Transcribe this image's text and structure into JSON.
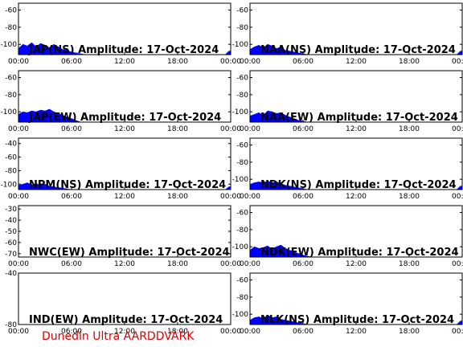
{
  "chart_data": [
    {
      "type": "area",
      "title": "JAP(NS) Amplitude: 17-Oct-2024",
      "yticks": [
        "-60",
        "-80",
        "-100"
      ],
      "ylim": [
        -112,
        -52
      ],
      "xticks": [
        "00:00",
        "06:00",
        "12:00",
        "18:00",
        "00:00"
      ],
      "xlim": [
        0,
        24
      ],
      "color": "#0000ff",
      "series": [
        {
          "x": [
            0,
            0.5,
            1,
            1.5,
            2,
            2.5,
            3,
            3.5,
            4,
            4.5,
            5,
            5.5,
            6,
            6.5,
            7,
            7.5,
            23.4,
            23.8,
            24
          ],
          "y": [
            -105,
            -100,
            -102,
            -98,
            -103,
            -99,
            -101,
            -104,
            -100,
            -103,
            -106,
            -107,
            -109,
            -110,
            -111,
            -112,
            -112,
            -108,
            -108
          ]
        }
      ]
    },
    {
      "type": "area",
      "title": "NAA(NS) Amplitude: 17-Oct-2024",
      "yticks": [
        "-60",
        "-80",
        "-100"
      ],
      "ylim": [
        -112,
        -52
      ],
      "xticks": [
        "00:00",
        "06:00",
        "12:00",
        "18:00",
        "00:00"
      ],
      "xlim": [
        0,
        24
      ],
      "color": "#0000ff",
      "series": [
        {
          "x": [
            0,
            0.5,
            1,
            1.5,
            2,
            2.5,
            3,
            3.5,
            4,
            4.5,
            5,
            5.5,
            6,
            6.5,
            7,
            23.4,
            23.8,
            24
          ],
          "y": [
            -106,
            -103,
            -101,
            -104,
            -100,
            -102,
            -105,
            -103,
            -107,
            -108,
            -109,
            -110,
            -111,
            -112,
            -112,
            -112,
            -108,
            -108
          ]
        }
      ]
    },
    {
      "type": "area",
      "title": "JAP(EW) Amplitude: 17-Oct-2024",
      "yticks": [
        "-60",
        "-80",
        "-100"
      ],
      "ylim": [
        -112,
        -52
      ],
      "xticks": [
        "00:00",
        "06:00",
        "12:00",
        "18:00",
        "00:00"
      ],
      "xlim": [
        0,
        24
      ],
      "color": "#0000ff",
      "series": [
        {
          "x": [
            0,
            0.5,
            1,
            1.5,
            2,
            2.5,
            3,
            3.5,
            4,
            4.5,
            5,
            5.5,
            6,
            6.5,
            7,
            24
          ],
          "y": [
            -103,
            -100,
            -101,
            -99,
            -100,
            -98,
            -99,
            -97,
            -100,
            -102,
            -104,
            -106,
            -108,
            -110,
            -112,
            -112
          ]
        }
      ]
    },
    {
      "type": "area",
      "title": "NAA(EW) Amplitude: 17-Oct-2024",
      "yticks": [
        "-60",
        "-80",
        "-100"
      ],
      "ylim": [
        -112,
        -52
      ],
      "xticks": [
        "00:00",
        "06:00",
        "12:00",
        "18:00",
        "00:00"
      ],
      "xlim": [
        0,
        24
      ],
      "color": "#0000ff",
      "series": [
        {
          "x": [
            0,
            0.5,
            1,
            1.5,
            2,
            2.5,
            3,
            3.5,
            4,
            4.5,
            5,
            5.5,
            6,
            6.5,
            7,
            24
          ],
          "y": [
            -105,
            -103,
            -101,
            -104,
            -99,
            -100,
            -102,
            -101,
            -104,
            -106,
            -108,
            -110,
            -111,
            -112,
            -112,
            -112
          ]
        }
      ]
    },
    {
      "type": "area",
      "title": "NPM(NS) Amplitude: 17-Oct-2024",
      "yticks": [
        "-40",
        "-60",
        "-80",
        "-100"
      ],
      "ylim": [
        -108,
        -32
      ],
      "xticks": [
        "00:00",
        "06:00",
        "12:00",
        "18:00",
        "00:00"
      ],
      "xlim": [
        0,
        24
      ],
      "color": "#0000ff",
      "series": [
        {
          "x": [
            0,
            0.5,
            1,
            1.5,
            2,
            2.5,
            3,
            3.5,
            4,
            4.5,
            5,
            5.5,
            6,
            23.4,
            23.8,
            24
          ],
          "y": [
            -102,
            -100,
            -98,
            -101,
            -99,
            -102,
            -100,
            -103,
            -104,
            -105,
            -106,
            -107,
            -108,
            -108,
            -104,
            -104
          ]
        }
      ]
    },
    {
      "type": "area",
      "title": "NDK(NS) Amplitude: 17-Oct-2024",
      "yticks": [
        "-60",
        "-80",
        "-100"
      ],
      "ylim": [
        -112,
        -52
      ],
      "xticks": [
        "00:00",
        "06:00",
        "12:00",
        "18:00",
        "00:00"
      ],
      "xlim": [
        0,
        24
      ],
      "color": "#0000ff",
      "series": [
        {
          "x": [
            0,
            0.5,
            1,
            1.5,
            2,
            2.5,
            3,
            3.5,
            4,
            4.5,
            5,
            5.5,
            6,
            6.5,
            7,
            23.4,
            23.8,
            24
          ],
          "y": [
            -106,
            -104,
            -103,
            -104,
            -102,
            -104,
            -103,
            -105,
            -107,
            -108,
            -109,
            -110,
            -111,
            -112,
            -112,
            -112,
            -108,
            -108
          ]
        }
      ]
    },
    {
      "type": "area",
      "title": "NWC(EW) Amplitude: 17-Oct-2024",
      "yticks": [
        "-30",
        "-40",
        "-50",
        "-60",
        "-70"
      ],
      "ylim": [
        -73,
        -27
      ],
      "xticks": [
        "00:00",
        "06:00",
        "12:00",
        "18:00",
        "00:00"
      ],
      "xlim": [
        0,
        24
      ],
      "color": "#0000ff",
      "series": [
        {
          "x": [
            0,
            24
          ],
          "y": [
            -73,
            -73
          ]
        }
      ]
    },
    {
      "type": "area",
      "title": "NDK(EW) Amplitude: 17-Oct-2024",
      "yticks": [
        "-60",
        "-80",
        "-100"
      ],
      "ylim": [
        -112,
        -52
      ],
      "xticks": [
        "00:00",
        "06:00",
        "12:00",
        "18:00",
        "00:00"
      ],
      "xlim": [
        0,
        24
      ],
      "color": "#0000ff",
      "series": [
        {
          "x": [
            0,
            0.5,
            1,
            1.5,
            2,
            2.5,
            3,
            3.5,
            4,
            4.5,
            5,
            5.5,
            6,
            6.5,
            7,
            24
          ],
          "y": [
            -104,
            -100,
            -102,
            -101,
            -99,
            -103,
            -100,
            -98,
            -102,
            -104,
            -106,
            -108,
            -110,
            -111,
            -112,
            -112
          ]
        }
      ]
    },
    {
      "type": "area",
      "title": "IND(EW) Amplitude: 17-Oct-2024",
      "yticks": [
        "-40",
        "-80"
      ],
      "ylim": [
        -80,
        -40
      ],
      "xticks": [
        "00:00",
        "06:00",
        "12:00",
        "18:00",
        "00:00"
      ],
      "xlim": [
        0,
        24
      ],
      "color": "#0000ff",
      "series": [
        {
          "x": [
            0,
            24
          ],
          "y": [
            -80,
            -80
          ]
        }
      ]
    },
    {
      "type": "area",
      "title": "NLK(NS) Amplitude: 17-Oct-2024",
      "yticks": [
        "-60",
        "-80",
        "-100"
      ],
      "ylim": [
        -112,
        -52
      ],
      "xticks": [
        "00:00",
        "06:00",
        "12:00",
        "18:00",
        "00:00"
      ],
      "xlim": [
        0,
        24
      ],
      "color": "#0000ff",
      "series": [
        {
          "x": [
            0,
            0.5,
            1,
            1.5,
            2,
            2.5,
            3,
            3.5,
            4,
            4.5,
            5,
            5.5,
            6,
            6.5,
            7,
            23.4,
            23.8,
            24
          ],
          "y": [
            -107,
            -104,
            -103,
            -105,
            -101,
            -104,
            -103,
            -106,
            -107,
            -108,
            -109,
            -110,
            -111,
            -112,
            -112,
            -112,
            -108,
            -108
          ]
        }
      ]
    }
  ],
  "footer": {
    "text": "Dunedin Ultra AARDDVARK",
    "color": "#e00000"
  }
}
